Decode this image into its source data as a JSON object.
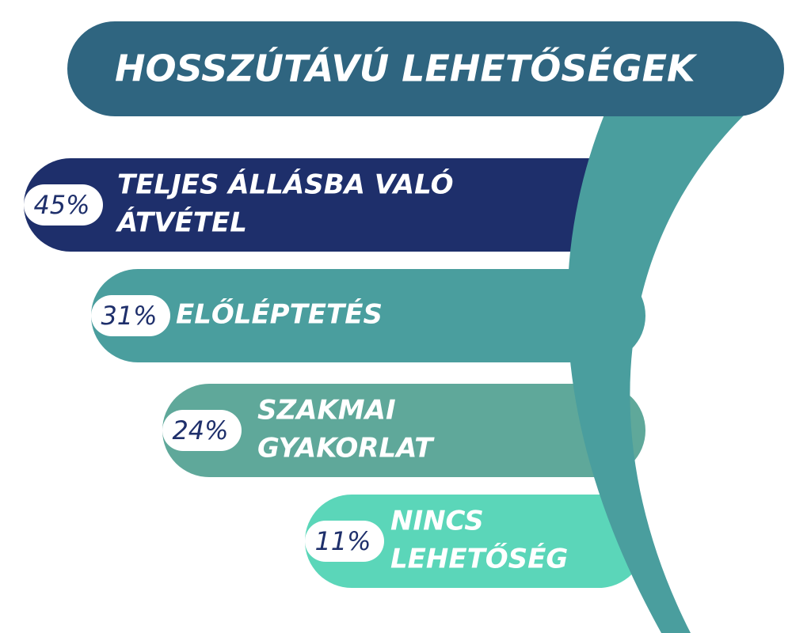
{
  "title": "HOSSZÚTÁVÚ LEHETŐSÉGEK",
  "items": [
    {
      "percent": "45%",
      "label": [
        "TELJES ÁLLÁSBA VALÓ",
        "ÁTVÉTEL"
      ]
    },
    {
      "percent": "31%",
      "label": [
        "ELŐLÉPTETÉS"
      ]
    },
    {
      "percent": "24%",
      "label": [
        "SZAKMAI",
        "GYAKORLAT"
      ]
    },
    {
      "percent": "11%",
      "label": [
        "NINCS",
        "LEHETŐSÉG"
      ]
    }
  ]
}
